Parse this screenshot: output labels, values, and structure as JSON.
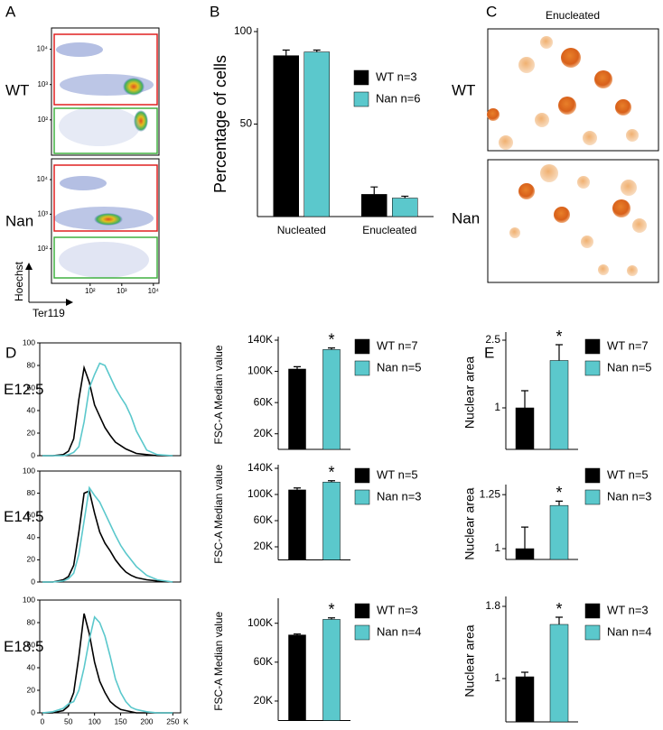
{
  "panel_labels": [
    "A",
    "B",
    "C",
    "D",
    "E"
  ],
  "flow_panel": {
    "row_labels": [
      "WT",
      "Nan"
    ],
    "xlabel": "Ter119",
    "ylabel": "Hoechst",
    "ylim": [
      10,
      40000
    ],
    "yticks": [
      {
        "value": 100,
        "label": "10²"
      },
      {
        "value": 1000,
        "label": "10³"
      },
      {
        "value": 10000,
        "label": "10⁴"
      }
    ],
    "xlim": [
      6,
      15000
    ],
    "xticks": [
      {
        "value": 100,
        "label": "10²"
      },
      {
        "value": 1000,
        "label": "10³"
      },
      {
        "value": 10000,
        "label": "10⁴"
      }
    ]
  },
  "micrograph_panel": {
    "title": "Enucleated",
    "row_labels": [
      "WT",
      "Nan"
    ]
  },
  "chart_data": [
    {
      "type": "bar",
      "ylabel": "Percentage of cells",
      "categories": [
        "Nucleated",
        "Enucleated"
      ],
      "series": [
        {
          "name": "WT n=3",
          "color": "#000000",
          "values": [
            87,
            12
          ],
          "errors": [
            3,
            4
          ]
        },
        {
          "name": "Nan n=6",
          "color": "#5bc8cc",
          "values": [
            89,
            10
          ],
          "errors": [
            1,
            1
          ]
        }
      ],
      "ylim": [
        0,
        100
      ],
      "yticks": [
        50,
        100
      ]
    },
    {
      "type": "line",
      "title": "E12.5",
      "x": [
        0,
        20,
        40,
        50,
        60,
        70,
        80,
        90,
        100,
        110,
        120,
        130,
        140,
        150,
        160,
        170,
        180,
        200,
        220,
        250
      ],
      "xlim": [
        -5,
        265
      ],
      "ylim": [
        0,
        100
      ],
      "yticks": [
        0,
        20,
        40,
        60,
        80,
        100
      ],
      "series": [
        {
          "color": "#000000",
          "values": [
            0,
            0,
            1,
            4,
            15,
            50,
            78,
            65,
            45,
            35,
            25,
            18,
            12,
            9,
            6,
            4,
            2,
            1,
            0,
            0
          ]
        },
        {
          "color": "#5bc8cc",
          "values": [
            0,
            0,
            0,
            1,
            3,
            8,
            30,
            60,
            72,
            82,
            80,
            70,
            60,
            52,
            45,
            35,
            22,
            5,
            1,
            0
          ]
        }
      ]
    },
    {
      "type": "line",
      "title": "E14.5",
      "x": [
        0,
        20,
        40,
        50,
        60,
        70,
        80,
        90,
        100,
        110,
        120,
        130,
        140,
        150,
        160,
        170,
        180,
        200,
        220,
        250
      ],
      "xlim": [
        -5,
        265
      ],
      "ylim": [
        0,
        100
      ],
      "yticks": [
        0,
        20,
        40,
        60,
        80,
        100
      ],
      "series": [
        {
          "color": "#000000",
          "values": [
            0,
            0,
            2,
            5,
            15,
            45,
            80,
            82,
            62,
            45,
            35,
            28,
            20,
            14,
            9,
            6,
            4,
            2,
            1,
            0
          ]
        },
        {
          "color": "#5bc8cc",
          "values": [
            0,
            0,
            1,
            3,
            8,
            25,
            55,
            85,
            78,
            72,
            62,
            52,
            42,
            33,
            26,
            20,
            14,
            6,
            2,
            0
          ]
        }
      ]
    },
    {
      "type": "line",
      "title": "E18.5",
      "x": [
        0,
        20,
        40,
        50,
        60,
        70,
        80,
        90,
        100,
        110,
        120,
        130,
        140,
        150,
        160,
        170,
        180,
        200,
        220,
        250
      ],
      "xlim": [
        -5,
        265
      ],
      "ylim": [
        0,
        100
      ],
      "yticks": [
        0,
        20,
        40,
        60,
        80,
        100
      ],
      "xticks": [
        0,
        50,
        100,
        150,
        200,
        250
      ],
      "xlabel": "K",
      "series": [
        {
          "color": "#000000",
          "values": [
            0,
            0,
            2,
            6,
            18,
            50,
            88,
            70,
            45,
            28,
            18,
            10,
            6,
            3,
            2,
            1,
            0,
            0,
            0,
            0
          ]
        },
        {
          "color": "#5bc8cc",
          "values": [
            0,
            1,
            4,
            8,
            10,
            20,
            40,
            65,
            85,
            80,
            68,
            50,
            30,
            18,
            10,
            5,
            3,
            1,
            0,
            0
          ]
        }
      ]
    },
    {
      "type": "bar",
      "ylabel": "FSC-A Median value",
      "annotation": "*",
      "series": [
        {
          "name": "WT n=7",
          "color": "#000000",
          "values": [
            103000
          ],
          "errors": [
            3000
          ]
        },
        {
          "name": "Nan n=5",
          "color": "#5bc8cc",
          "values": [
            128000
          ],
          "errors": [
            2000
          ]
        }
      ],
      "ylim": [
        0,
        140000
      ],
      "yticks": [
        {
          "value": 20000,
          "label": "20K"
        },
        {
          "value": 60000,
          "label": "60K"
        },
        {
          "value": 100000,
          "label": "100K"
        },
        {
          "value": 140000,
          "label": "140K"
        }
      ]
    },
    {
      "type": "bar",
      "ylabel": "FSC-A Median value",
      "annotation": "*",
      "series": [
        {
          "name": "WT n=5",
          "color": "#000000",
          "values": [
            107000
          ],
          "errors": [
            3000
          ]
        },
        {
          "name": "Nan n=3",
          "color": "#5bc8cc",
          "values": [
            119000
          ],
          "errors": [
            2000
          ]
        }
      ],
      "ylim": [
        0,
        140000
      ],
      "yticks": [
        {
          "value": 20000,
          "label": "20K"
        },
        {
          "value": 60000,
          "label": "60K"
        },
        {
          "value": 100000,
          "label": "100K"
        },
        {
          "value": 140000,
          "label": "140K"
        }
      ]
    },
    {
      "type": "bar",
      "ylabel": "FSC-A Median value",
      "annotation": "*",
      "series": [
        {
          "name": "WT n=3",
          "color": "#000000",
          "values": [
            88000
          ],
          "errors": [
            1000
          ]
        },
        {
          "name": "Nan n=4",
          "color": "#5bc8cc",
          "values": [
            104000
          ],
          "errors": [
            1500
          ]
        }
      ],
      "ylim": [
        0,
        122000
      ],
      "yticks": [
        {
          "value": 20000,
          "label": "20K"
        },
        {
          "value": 60000,
          "label": "60K"
        },
        {
          "value": 100000,
          "label": "100K"
        }
      ]
    },
    {
      "type": "bar",
      "ylabel": "Nuclear area",
      "annotation": "*",
      "series": [
        {
          "name": "WT n=7",
          "color": "#000000",
          "values": [
            1.0
          ],
          "errors": [
            0.38
          ]
        },
        {
          "name": "Nan n=5",
          "color": "#5bc8cc",
          "values": [
            2.05
          ],
          "errors": [
            0.35
          ]
        }
      ],
      "ylim": [
        0.08,
        2.6
      ],
      "yticks": [
        1,
        2.5
      ]
    },
    {
      "type": "bar",
      "ylabel": "Nuclear area",
      "annotation": "*",
      "series": [
        {
          "name": "WT n=5",
          "color": "#000000",
          "values": [
            1.0
          ],
          "errors": [
            0.1
          ]
        },
        {
          "name": "Nan n=3",
          "color": "#5bc8cc",
          "values": [
            1.2
          ],
          "errors": [
            0.02
          ]
        }
      ],
      "ylim": [
        0.95,
        1.28
      ],
      "yticks": [
        1,
        1.25
      ]
    },
    {
      "type": "bar",
      "ylabel": "Nuclear area",
      "annotation": "*",
      "series": [
        {
          "name": "WT n=3",
          "color": "#000000",
          "values": [
            1.02
          ],
          "errors": [
            0.05
          ]
        },
        {
          "name": "Nan n=4",
          "color": "#5bc8cc",
          "values": [
            1.6
          ],
          "errors": [
            0.08
          ]
        }
      ],
      "ylim": [
        0.52,
        1.87
      ],
      "yticks": [
        1,
        1.8
      ]
    }
  ]
}
